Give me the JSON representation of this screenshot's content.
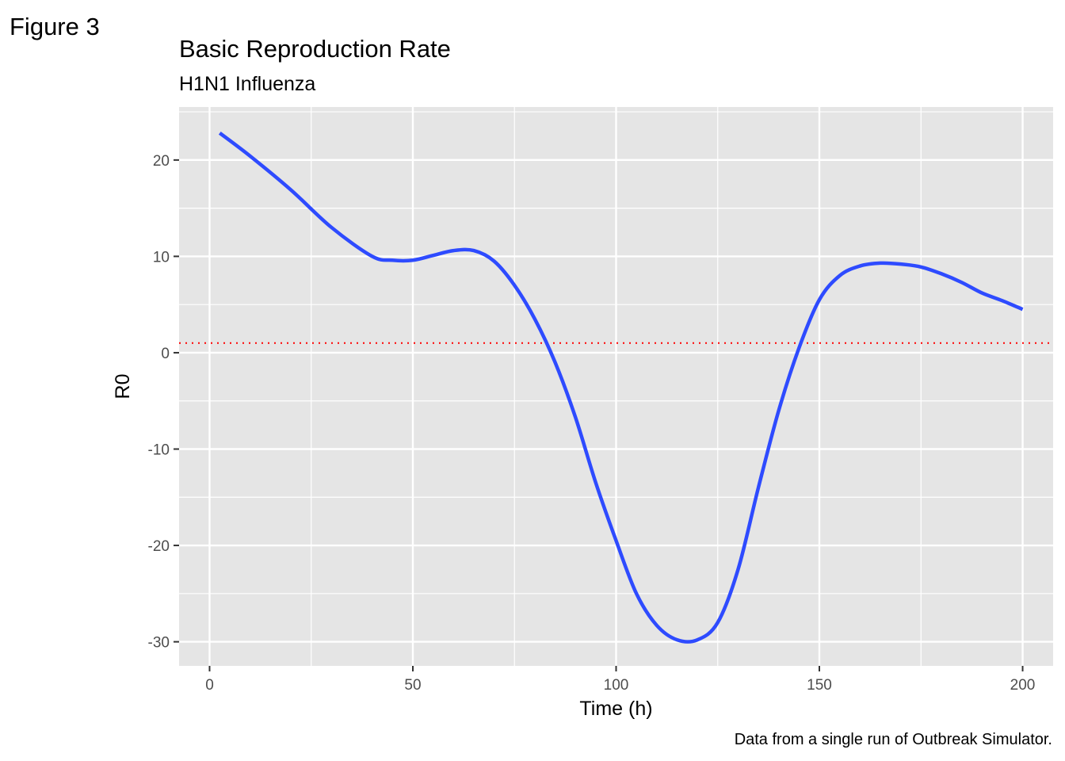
{
  "figure_label": "Figure 3",
  "caption": "Data from a single run of Outbreak Simulator.",
  "colors": {
    "panel": "#e5e5e5",
    "grid": "#ffffff",
    "series": "#2e4bff",
    "reference": "#ff0000"
  },
  "chart_data": {
    "type": "line",
    "title": "Basic Reproduction Rate",
    "subtitle": "H1N1 Influenza",
    "xlabel": "Time (h)",
    "ylabel": "R0",
    "xlim": [
      -7.5,
      207.5
    ],
    "ylim": [
      -32.5,
      25.5
    ],
    "x_ticks": [
      0,
      50,
      100,
      150,
      200
    ],
    "x_tick_labels": [
      "0",
      "50",
      "100",
      "150",
      "200"
    ],
    "y_ticks": [
      -30,
      -20,
      -10,
      0,
      10,
      20
    ],
    "y_tick_labels": [
      "-30",
      "-20",
      "-10",
      "0",
      "10",
      "20"
    ],
    "grid": true,
    "legend": "none",
    "reference_line": {
      "y": 1,
      "style": "dotted",
      "color": "#ff0000"
    },
    "series": [
      {
        "color": "#2e4bff",
        "x": [
          2.5,
          10,
          20,
          30,
          40,
          45,
          50,
          55,
          60,
          65,
          70,
          75,
          80,
          85,
          90,
          95,
          100,
          105,
          110,
          115,
          120,
          125,
          130,
          135,
          140,
          145,
          150,
          155,
          160,
          165,
          170,
          175,
          180,
          185,
          190,
          195,
          200
        ],
        "y": [
          22.8,
          20.4,
          16.9,
          13.0,
          10.0,
          9.6,
          9.6,
          10.1,
          10.6,
          10.6,
          9.5,
          7.0,
          3.5,
          -1.0,
          -6.7,
          -13.5,
          -19.5,
          -25.0,
          -28.3,
          -29.8,
          -29.8,
          -28.0,
          -22.5,
          -14.0,
          -6.0,
          0.5,
          5.5,
          8.0,
          9.0,
          9.3,
          9.2,
          8.9,
          8.2,
          7.3,
          6.2,
          5.4,
          4.5
        ]
      }
    ]
  }
}
